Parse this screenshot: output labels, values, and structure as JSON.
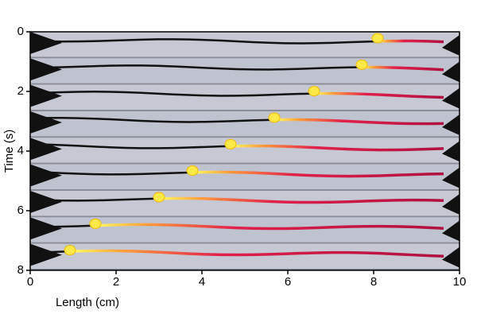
{
  "chart_data": {
    "type": "image",
    "xlabel": "Length (cm)",
    "ylabel": "Time (s)",
    "xlim": [
      0,
      10
    ],
    "xticks": [
      0,
      2,
      4,
      6,
      8,
      10
    ],
    "ylim": [
      8,
      0
    ],
    "yticks": [
      0,
      2,
      4,
      6,
      8
    ]
  }
}
